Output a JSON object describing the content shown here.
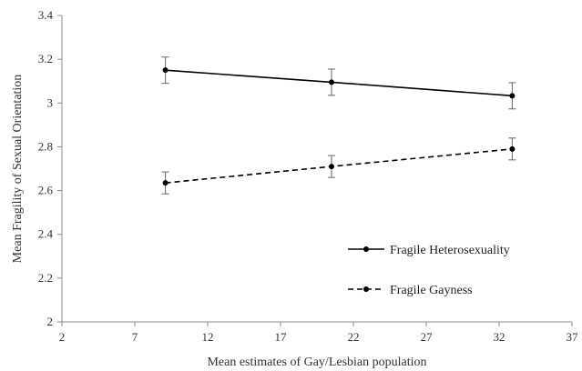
{
  "chart_data": {
    "type": "line",
    "title": "",
    "xlabel": "Mean estimates of Gay/Lesbian population",
    "ylabel": "Mean Fragility of Sexual Orientation",
    "xlim": [
      2,
      37
    ],
    "ylim": [
      2,
      3.4
    ],
    "x_ticks": [
      2,
      7,
      12,
      17,
      22,
      27,
      32,
      37
    ],
    "y_ticks": [
      2,
      2.2,
      2.4,
      2.6,
      2.8,
      3,
      3.2,
      3.4
    ],
    "x_tick_labels": [
      "2",
      "7",
      "12",
      "17",
      "22",
      "27",
      "32",
      "37"
    ],
    "y_tick_labels": [
      "2",
      "2.2",
      "2.4",
      "2.6",
      "2.8",
      "3",
      "3.2",
      "3.4"
    ],
    "grid": false,
    "legend_position": "bottom-right",
    "series": [
      {
        "name": "Fragile Heterosexuality",
        "line_style": "solid",
        "color": "#000000",
        "x": [
          9.1,
          20.5,
          32.9
        ],
        "y": [
          3.15,
          3.095,
          3.033
        ],
        "error": [
          0.06,
          0.06,
          0.06
        ]
      },
      {
        "name": "Fragile Gayness",
        "line_style": "dashed",
        "color": "#000000",
        "x": [
          9.1,
          20.5,
          32.9
        ],
        "y": [
          2.635,
          2.71,
          2.79
        ],
        "error": [
          0.05,
          0.05,
          0.05
        ]
      }
    ]
  }
}
